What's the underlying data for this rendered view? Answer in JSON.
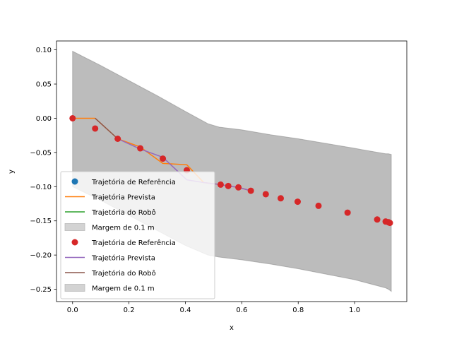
{
  "chart_data": {
    "type": "line",
    "title": "",
    "xlabel": "x",
    "ylabel": "y",
    "xlim": [
      -0.057,
      1.185
    ],
    "ylim": [
      -0.268,
      0.113
    ],
    "xticks": [
      0.0,
      0.2,
      0.4,
      0.6,
      0.8,
      1.0
    ],
    "xtick_labels": [
      "0.0",
      "0.2",
      "0.4",
      "0.6",
      "0.8",
      "1.0"
    ],
    "yticks": [
      -0.25,
      -0.2,
      -0.15,
      -0.1,
      -0.05,
      0.0,
      0.05,
      0.1
    ],
    "ytick_labels": [
      "−0.25",
      "−0.20",
      "−0.15",
      "−0.10",
      "−0.05",
      "0.00",
      "0.05",
      "0.10"
    ],
    "grid": false,
    "legend_position": "lower-left",
    "series": [
      {
        "name": "Margem de 0.1 m",
        "kind": "band",
        "color": "#a0a0a0",
        "opacity": 0.7,
        "upper_x": [
          0.0,
          0.1,
          0.2,
          0.3,
          0.4,
          0.48,
          0.52,
          0.6,
          0.7,
          0.8,
          0.9,
          1.0,
          1.11,
          1.12,
          1.13
        ],
        "upper_y": [
          0.098,
          0.077,
          0.055,
          0.033,
          0.01,
          -0.008,
          -0.013,
          -0.017,
          -0.024,
          -0.03,
          -0.037,
          -0.044,
          -0.052,
          -0.052,
          -0.053
        ],
        "lower_x": [
          0.0,
          0.1,
          0.2,
          0.3,
          0.4,
          0.48,
          0.52,
          0.6,
          0.7,
          0.8,
          0.9,
          1.0,
          1.11,
          1.12,
          1.13
        ],
        "lower_y": [
          -0.1,
          -0.12,
          -0.142,
          -0.164,
          -0.186,
          -0.2,
          -0.203,
          -0.207,
          -0.213,
          -0.22,
          -0.228,
          -0.236,
          -0.248,
          -0.25,
          -0.253
        ]
      },
      {
        "name": "Trajetória de Referência",
        "kind": "scatter",
        "color": "#d62728",
        "x": [
          0.0,
          0.08,
          0.16,
          0.24,
          0.32,
          0.405,
          0.525,
          0.552,
          0.588,
          0.632,
          0.685,
          0.738,
          0.798,
          0.872,
          0.975,
          1.08,
          1.11,
          1.12,
          1.125
        ],
        "y": [
          0.0,
          -0.015,
          -0.03,
          -0.044,
          -0.059,
          -0.076,
          -0.097,
          -0.099,
          -0.101,
          -0.106,
          -0.111,
          -0.117,
          -0.122,
          -0.128,
          -0.138,
          -0.148,
          -0.151,
          -0.152,
          -0.153
        ]
      },
      {
        "name": "Trajetória Prevista",
        "kind": "line",
        "color": "#ff7f0e",
        "x": [
          0.0,
          0.08,
          0.16,
          0.24,
          0.32,
          0.405,
          0.465,
          0.525,
          0.552,
          0.588,
          0.632
        ],
        "y": [
          0.0,
          0.0,
          -0.03,
          -0.042,
          -0.066,
          -0.068,
          -0.094,
          -0.097,
          -0.099,
          -0.101,
          -0.106
        ]
      },
      {
        "name": "Trajetória Prevista",
        "kind": "line",
        "color": "#9467bd",
        "x": [
          0.16,
          0.24,
          0.32,
          0.405,
          0.465,
          0.525,
          0.552,
          0.588,
          0.632
        ],
        "y": [
          -0.03,
          -0.045,
          -0.057,
          -0.09,
          -0.094,
          -0.097,
          -0.099,
          -0.101,
          -0.106
        ]
      },
      {
        "name": "Trajetória do Robô",
        "kind": "line",
        "color": "#8c564b",
        "x": [
          0.08,
          0.16
        ],
        "y": [
          0.0,
          -0.03
        ]
      }
    ],
    "legend": [
      {
        "label": "Trajetória de Referência",
        "marker": "dot",
        "color": "#1f77b4"
      },
      {
        "label": "Trajetória Prevista",
        "marker": "line",
        "color": "#ff7f0e"
      },
      {
        "label": "Trajetória do Robô",
        "marker": "line",
        "color": "#2ca02c"
      },
      {
        "label": "Margem de 0.1 m",
        "marker": "patch",
        "color": "#d3d3d3"
      },
      {
        "label": "Trajetória de Referência",
        "marker": "dot",
        "color": "#d62728"
      },
      {
        "label": "Trajetória Prevista",
        "marker": "line",
        "color": "#9467bd"
      },
      {
        "label": "Trajetória do Robô",
        "marker": "line",
        "color": "#8c564b"
      },
      {
        "label": "Margem de 0.1 m",
        "marker": "patch",
        "color": "#d3d3d3"
      }
    ]
  }
}
